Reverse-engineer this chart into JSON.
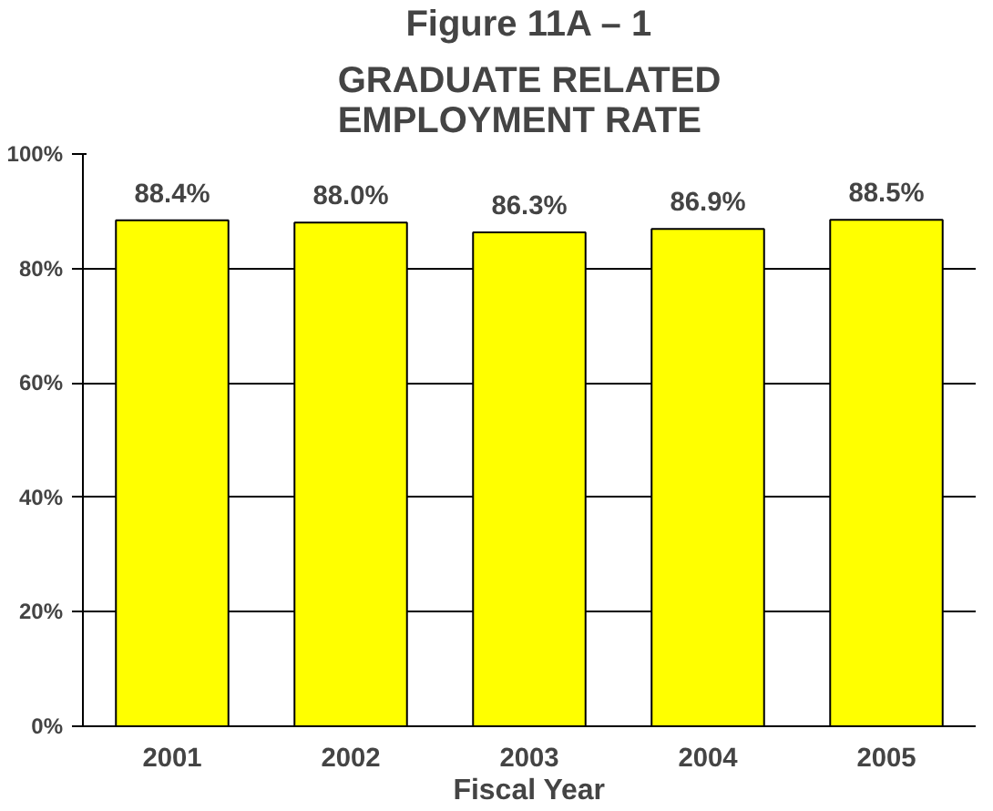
{
  "chart_data": {
    "type": "bar",
    "title": "Figure 11A – 1",
    "subtitle": "GRADUATE RELATED EMPLOYMENT RATE",
    "xlabel": "Fiscal Year",
    "categories": [
      "2001",
      "2002",
      "2003",
      "2004",
      "2005"
    ],
    "values": [
      88.4,
      88.0,
      86.3,
      86.9,
      88.5
    ],
    "value_labels": [
      "88.4%",
      "88.0%",
      "86.3%",
      "86.9%",
      "88.5%"
    ],
    "color": "#ffff00",
    "ylim": [
      0,
      100
    ],
    "yticks": [
      {
        "value": 0,
        "label": "0%"
      },
      {
        "value": 20,
        "label": "20%"
      },
      {
        "value": 40,
        "label": "40%"
      },
      {
        "value": 60,
        "label": "60%"
      },
      {
        "value": 80,
        "label": "80%"
      },
      {
        "value": 100,
        "label": "100%"
      }
    ],
    "grid": "y"
  }
}
